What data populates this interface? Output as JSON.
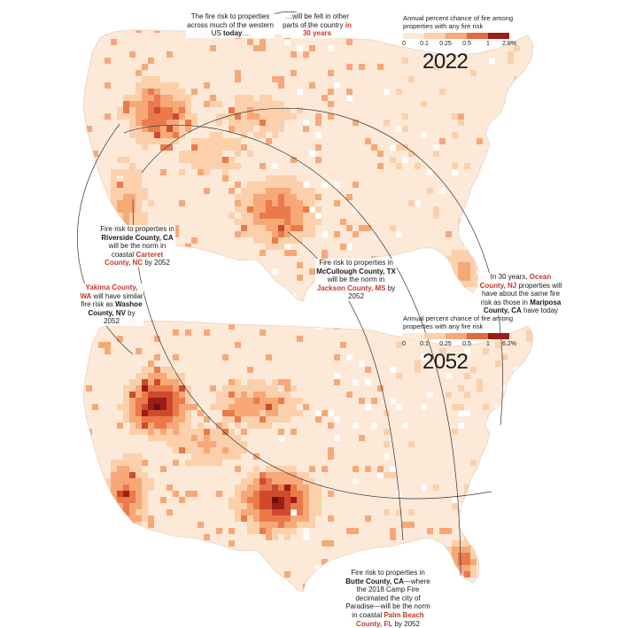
{
  "palette": [
    "#fde9d8",
    "#fbd0ab",
    "#f6a877",
    "#ea7a4a",
    "#cf4a2c",
    "#9e1c16",
    "#6e0f0c"
  ],
  "legend_2022": {
    "title": "Annual percent chance of fire among properties with any fire risk",
    "ticks": [
      "0",
      "0.1",
      "0.25",
      "0.5",
      "1",
      "2.8%"
    ]
  },
  "legend_2052": {
    "title": "Annual percent chance of fire among properties with any fire risk",
    "ticks": [
      "0",
      "0.1",
      "0.25",
      "0.5",
      "1",
      "6.2%"
    ]
  },
  "years": {
    "top": "2022",
    "bottom": "2052"
  },
  "notes": {
    "western_today": {
      "a": "The fire risk to properties across much of the western US ",
      "b": "today",
      "c": "…"
    },
    "thirty_years": {
      "a": "…will be felt in other parts of the country ",
      "b": "in 30 years"
    },
    "riverside": {
      "a": "Fire risk to properties in ",
      "b": "Riverside County, CA",
      "c": " will be the norm in coastal ",
      "d": "Carteret County, NC",
      "e": " by 2052"
    },
    "yakima": {
      "a": "Yakima County, WA",
      "b": " will have similar fire risk as ",
      "c": "Washoe County, NV",
      "d": " by 2052"
    },
    "mcculloch": {
      "a": "Fire risk to properties in ",
      "b": "McCullough County, TX",
      "c": " will be the norm in ",
      "d": "Jackson County, MS",
      "e": " by 2052"
    },
    "ocean": {
      "a": "In 30 years, ",
      "b": "Ocean County, NJ",
      "c": " properties will have about the same fire risk as those in ",
      "d": "Mariposa County, CA",
      "e": " have today"
    },
    "butte": {
      "a": "Fire risk to properties in ",
      "b": "Butte County, CA",
      "c": "—where the 2018 Camp Fire decimated the city of Paradise—will be the norm in coastal ",
      "d": "Palm Beach County, FL",
      "e": " by 2052"
    }
  }
}
